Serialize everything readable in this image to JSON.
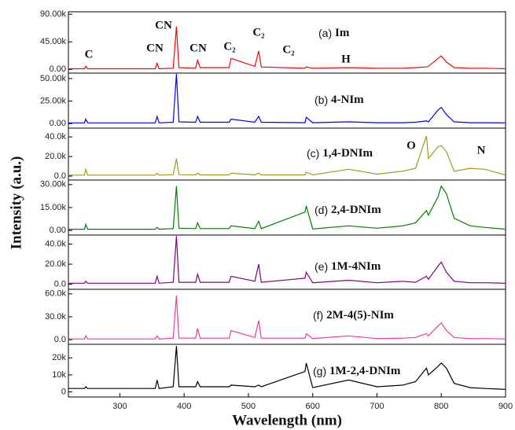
{
  "chart_data": [
    {
      "type": "line",
      "tag": "(a)",
      "name": "Im",
      "color": "#ff0000",
      "ylabel": "Intensity (a.u.)",
      "annotations": [
        "C",
        "CN",
        "CN",
        "CN",
        "C₂",
        "C₂",
        "C₂",
        "H"
      ],
      "xlim": [
        220,
        900
      ],
      "ylim": [
        -6000,
        94000
      ],
      "yticks": [
        {
          "value": 0,
          "label": "0.00"
        },
        {
          "value": 45000,
          "label": "45.00k"
        },
        {
          "value": 90000,
          "label": "90.00k"
        }
      ],
      "x": [
        220,
        245,
        247,
        250,
        300,
        355,
        358,
        361,
        383,
        388,
        392,
        418,
        421,
        425,
        470,
        473,
        510,
        516,
        520,
        588,
        590,
        600,
        656,
        700,
        740,
        760,
        777,
        780,
        795,
        800,
        808,
        820,
        845,
        868,
        900
      ],
      "values": [
        1000,
        1000,
        5000,
        1000,
        1000,
        1000,
        10000,
        1000,
        2000,
        70000,
        3000,
        2000,
        15000,
        3000,
        3000,
        18000,
        5000,
        30000,
        4000,
        2000,
        4000,
        2000,
        3000,
        2000,
        2000,
        3000,
        4000,
        5000,
        18000,
        22000,
        12000,
        3000,
        2000,
        2000,
        1000
      ]
    },
    {
      "type": "line",
      "tag": "(b)",
      "name": "4-NIm",
      "color": "#0000ff",
      "xlim": [
        220,
        900
      ],
      "ylim": [
        -5000,
        56000
      ],
      "yticks": [
        {
          "value": 0,
          "label": "0.00"
        },
        {
          "value": 25000,
          "label": "25.00k"
        },
        {
          "value": 50000,
          "label": "50.00k"
        }
      ],
      "x": [
        220,
        245,
        247,
        250,
        300,
        355,
        358,
        361,
        383,
        388,
        392,
        418,
        421,
        425,
        470,
        473,
        510,
        516,
        520,
        588,
        590,
        600,
        656,
        700,
        740,
        760,
        777,
        780,
        795,
        800,
        808,
        820,
        845,
        868,
        900
      ],
      "values": [
        800,
        800,
        5000,
        800,
        800,
        800,
        8000,
        800,
        1500,
        55000,
        2000,
        1500,
        8000,
        1500,
        1500,
        5000,
        1500,
        8000,
        1500,
        1000,
        7000,
        1000,
        2000,
        1000,
        1000,
        1500,
        3000,
        2000,
        15000,
        18000,
        10000,
        2000,
        1000,
        1000,
        800
      ]
    },
    {
      "type": "line",
      "tag": "(c)",
      "name": "1,4-DNIm",
      "color": "#a09a20",
      "annotations": [
        "O",
        "N"
      ],
      "xlim": [
        220,
        900
      ],
      "ylim": [
        -4000,
        49000
      ],
      "yticks": [
        {
          "value": 0,
          "label": "0.0"
        },
        {
          "value": 20000,
          "label": "20.0k"
        },
        {
          "value": 40000,
          "label": "40.0k"
        }
      ],
      "x": [
        220,
        245,
        247,
        250,
        300,
        355,
        358,
        361,
        383,
        388,
        392,
        418,
        421,
        425,
        470,
        473,
        510,
        516,
        520,
        588,
        590,
        600,
        656,
        700,
        740,
        760,
        777,
        780,
        795,
        800,
        808,
        820,
        845,
        868,
        900
      ],
      "values": [
        1000,
        1000,
        7000,
        1000,
        1000,
        1000,
        3000,
        1000,
        1500,
        18000,
        1500,
        1200,
        3000,
        1200,
        1200,
        3000,
        1200,
        3000,
        1200,
        1200,
        4000,
        1200,
        7000,
        2000,
        5000,
        8000,
        41000,
        18000,
        30000,
        31000,
        25000,
        5000,
        8000,
        7000,
        1000
      ]
    },
    {
      "type": "line",
      "tag": "(d)",
      "name": "2,4-DNIm",
      "color": "#008000",
      "xlim": [
        220,
        900
      ],
      "ylim": [
        -3000,
        33000
      ],
      "yticks": [
        {
          "value": 0,
          "label": "0.00"
        },
        {
          "value": 15000,
          "label": "15.00k"
        },
        {
          "value": 30000,
          "label": "30.00k"
        }
      ],
      "x": [
        220,
        245,
        247,
        250,
        300,
        355,
        358,
        361,
        383,
        388,
        392,
        418,
        421,
        425,
        470,
        473,
        510,
        516,
        520,
        588,
        590,
        600,
        656,
        700,
        740,
        760,
        777,
        780,
        795,
        800,
        808,
        820,
        845,
        868,
        900
      ],
      "values": [
        800,
        800,
        4000,
        800,
        800,
        800,
        2000,
        800,
        1200,
        29000,
        1500,
        1200,
        5000,
        1200,
        1200,
        3000,
        1200,
        6000,
        1200,
        12000,
        16000,
        1000,
        3000,
        1500,
        3000,
        5000,
        13000,
        10000,
        22000,
        29000,
        24000,
        8000,
        3000,
        2000,
        800
      ]
    },
    {
      "type": "line",
      "tag": "(e)",
      "name": "1M-4NIm",
      "color": "#800080",
      "xlim": [
        220,
        900
      ],
      "ylim": [
        -5000,
        49000
      ],
      "yticks": [
        {
          "value": 0,
          "label": "0.0"
        },
        {
          "value": 20000,
          "label": "20.0k"
        },
        {
          "value": 40000,
          "label": "40.0k"
        }
      ],
      "x": [
        220,
        245,
        247,
        250,
        300,
        355,
        358,
        361,
        383,
        388,
        392,
        418,
        421,
        425,
        470,
        473,
        510,
        516,
        520,
        588,
        590,
        600,
        656,
        700,
        740,
        760,
        777,
        780,
        795,
        800,
        808,
        820,
        845,
        868,
        900
      ],
      "values": [
        1000,
        1000,
        3000,
        1000,
        1000,
        1000,
        8000,
        1000,
        2000,
        48000,
        2000,
        2000,
        10000,
        2000,
        2000,
        8000,
        3000,
        20000,
        2000,
        6000,
        12000,
        1500,
        4000,
        1500,
        3000,
        2000,
        8000,
        5000,
        18000,
        22000,
        12000,
        3000,
        1500,
        1500,
        1000
      ]
    },
    {
      "type": "line",
      "tag": "(f)",
      "name": "2M-4(5)-NIm",
      "color": "#ee3c9c",
      "xlim": [
        220,
        900
      ],
      "ylim": [
        -6000,
        66000
      ],
      "yticks": [
        {
          "value": 0,
          "label": "0.0"
        },
        {
          "value": 30000,
          "label": "30.0k"
        },
        {
          "value": 60000,
          "label": "60.0k"
        }
      ],
      "x": [
        220,
        245,
        247,
        250,
        300,
        355,
        358,
        361,
        383,
        388,
        392,
        418,
        421,
        425,
        470,
        473,
        510,
        516,
        520,
        588,
        590,
        600,
        656,
        700,
        740,
        760,
        777,
        780,
        795,
        800,
        808,
        820,
        845,
        868,
        900
      ],
      "values": [
        1000,
        1000,
        5000,
        1000,
        1000,
        1000,
        5000,
        1000,
        2000,
        58000,
        2000,
        2000,
        15000,
        2000,
        2000,
        12000,
        3000,
        25000,
        2000,
        2000,
        8000,
        1500,
        5000,
        1500,
        2000,
        3000,
        8000,
        5000,
        18000,
        22000,
        12000,
        3000,
        1500,
        1500,
        1000
      ]
    },
    {
      "type": "line",
      "tag": "(g)",
      "name": "1M-2,4-DNIm",
      "color": "#000000",
      "xlabel": "Wavelength (nm)",
      "xlim": [
        220,
        900
      ],
      "xticks": [
        300,
        400,
        500,
        600,
        700,
        800,
        900
      ],
      "ylim": [
        -3000,
        28000
      ],
      "yticks": [
        0,
        {
          "value": 10000,
          "label": "10k"
        },
        {
          "value": 20000,
          "label": "20k"
        }
      ],
      "x": [
        220,
        245,
        247,
        250,
        300,
        355,
        358,
        361,
        383,
        388,
        392,
        418,
        421,
        425,
        470,
        473,
        510,
        516,
        520,
        588,
        590,
        600,
        656,
        700,
        740,
        760,
        777,
        780,
        795,
        800,
        808,
        820,
        845,
        868,
        900
      ],
      "values": [
        2000,
        2000,
        3000,
        2000,
        2000,
        2000,
        7000,
        2000,
        3000,
        27000,
        3000,
        3000,
        6000,
        3000,
        3000,
        4000,
        3000,
        4000,
        3000,
        12000,
        17000,
        2500,
        7000,
        3000,
        4000,
        6000,
        14000,
        10000,
        15000,
        17000,
        14000,
        5000,
        2500,
        2000,
        1500
      ]
    }
  ]
}
